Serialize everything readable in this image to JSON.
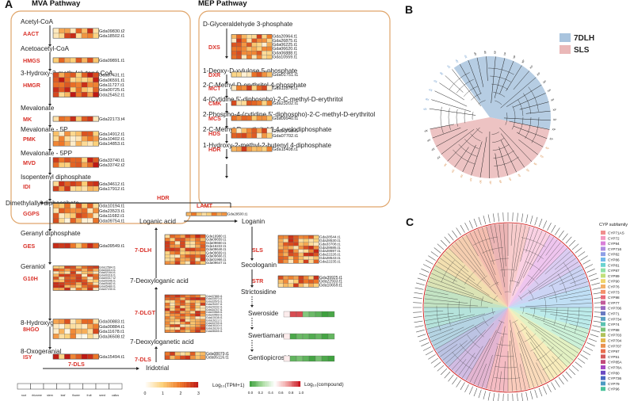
{
  "panels": {
    "a": "A",
    "b": "B",
    "c": "C"
  },
  "headers": {
    "mva": "MVA  Pathway",
    "mep": "MEP  Pathway"
  },
  "mva": [
    {
      "name": "Acetyl-CoA"
    },
    {
      "enzyme": "AACT",
      "genes": [
        "Gda09830.t2",
        "Gda18502.t1"
      ]
    },
    {
      "name": "Acetoacetyl-CoA"
    },
    {
      "enzyme": "HMGS",
      "genes": [
        "Gda09891.t1"
      ]
    },
    {
      "name": "3-Hydroxy-3-methylglutaryl-CoA"
    },
    {
      "enzyme": "HMGR",
      "genes": [
        "Gda07431.t1",
        "Gda06591.t1",
        "Gda11727.t1",
        "Gda00725.t1",
        "Gda25452.t1"
      ]
    },
    {
      "name": "Mevalonate"
    },
    {
      "enzyme": "MK",
      "genes": [
        "Gda22173.t4"
      ]
    },
    {
      "name": "Mevalonate - 5P"
    },
    {
      "enzyme": "PMK",
      "genes": [
        "Gda14912.t1",
        "Gda10402.t1",
        "Gda14853.t1"
      ]
    },
    {
      "name": "Mevalonate - 5PP"
    },
    {
      "enzyme": "MVD",
      "genes": [
        "Gda33740.t1",
        "Gda33742.t2"
      ]
    },
    {
      "name": "Isopentenyl diphosphate"
    },
    {
      "enzyme": "IDI",
      "genes": [
        "Gda34612.t1",
        "Gda17912.t1"
      ]
    },
    {
      "name": "Dimethylallyl diphosphate"
    },
    {
      "enzyme": "GGPS",
      "genes": [
        "Gda10194.t1",
        "Gda23523.t1",
        "Gda11682.t1",
        "Gda09754.t1"
      ]
    },
    {
      "name": "Geranyl diphosphate"
    },
    {
      "enzyme": "GES",
      "genes": [
        "Gda09549.t1"
      ]
    },
    {
      "name": "Geraniol"
    },
    {
      "enzyme": "G10H",
      "genes": [
        "Gda12584.t1",
        "Gda34414.t1",
        "Gda02164.t1",
        "Gda00316.t1",
        "Gda00317.t2",
        "Gda00346.t1",
        "Gda05482.t1",
        "Gda05480.t1",
        "Gda37230.t1"
      ]
    },
    {
      "name": "8-Hydroxygeraniol"
    },
    {
      "enzyme": "8HGO",
      "genes": [
        "Gda00883.t1",
        "Gda00884.t1",
        "Gda11678.t1",
        "Gda36508.t2"
      ]
    },
    {
      "name": "8-Oxogeranial"
    },
    {
      "enzyme": "ISY",
      "genes": [
        "Gda15494.t1"
      ]
    },
    {
      "name": "Iridodial"
    }
  ],
  "mep": [
    {
      "name": "D-Glyceraldehyde 3-phosphate"
    },
    {
      "enzyme": "DXS",
      "genes": [
        "Gda20964.t1",
        "Gda26875.t1",
        "Gda06225.t1",
        "Gda06620.t1",
        "Gda06888.t1",
        "Gda10559.t1"
      ]
    },
    {
      "name": "1-Deoxy-D-xylulose 5-phosphate"
    },
    {
      "enzyme": "DXR",
      "genes": [
        "Gda01751.t1"
      ]
    },
    {
      "name": "2-C-Methyl-D-erythritol 4-phosphate"
    },
    {
      "enzyme": "MCT",
      "genes": [
        "Gda11875.t1"
      ]
    },
    {
      "name": "4-(Cytidine 5'-diphospho)-2-C-methyl-D-erythritol"
    },
    {
      "enzyme": "CMK",
      "genes": [
        "Gda23202.t1"
      ]
    },
    {
      "name": "2-Phospho-4-(cytidine 5'-diphospho)-2-C-methyl-D-erythritol"
    },
    {
      "enzyme": "MCS",
      "genes": [
        "Gda09940.t1"
      ]
    },
    {
      "name": "2-C-Methyl-D-erythritol 2,4-cyclodiphosphate"
    },
    {
      "enzyme": "HDS",
      "genes": [
        "Gda07708.t1",
        "Gda07702.t1"
      ]
    },
    {
      "name": "1-Hydroxy-2-methyl-2-butenyl 4-diphosphate"
    },
    {
      "enzyme": "HDR",
      "genes": [
        "Gda11408.t1"
      ]
    }
  ],
  "labels": {
    "hdr_link": "HDR",
    "dls": "7-DLS",
    "iridotrial": "Iridotrial",
    "deoxyloganetic": "7-Deoxyloganetic acid",
    "deoxyloganic": "7-Deoxyloganic acid",
    "loganic": "Loganic acid",
    "loganin": "Loganin",
    "secologanin": "Secologanin",
    "strictosidine": "Strictosidine",
    "sweroside": "Sweroside",
    "swertiamarin": "Swertiamarin",
    "gentiopicroside": "Gentiopicroside"
  },
  "downstream_enzymes": [
    {
      "enzyme": "7-DLS",
      "genes": [
        "Gda08079.t1",
        "Gda05116.t1"
      ]
    },
    {
      "enzyme": "7-DLGT",
      "genes": [
        "Gda37585.t1",
        "Gda33570.t1",
        "Gda33576.t1",
        "Gda25437.t1",
        "Gda29232.t1",
        "Gda34747.t1",
        "Gda33568.t1",
        "Gda33569.t1",
        "Gda10108.t1",
        "Gda16111.t1",
        "Gda34749.t1",
        "Gda16110.t1",
        "Gda16109.t1",
        "Gda08045.t1"
      ]
    },
    {
      "enzyme": "7-DLH",
      "genes": [
        "Gda16980.t1",
        "Gda09659.t1",
        "Gda09660.t1",
        "Gda16222.t1",
        "Gda09646.t1",
        "Gda09669.t1",
        "Gda09666.t1",
        "Gda01966.t1",
        "Gda09647.t1"
      ]
    },
    {
      "enzyme": "LAMT",
      "genes": [
        "Gda29500.t1"
      ]
    },
    {
      "enzyme": "SLS",
      "genes": [
        "Gda28544.t1",
        "Gda28530.t1",
        "Gda33708.t1",
        "Gda28685.t1",
        "Gda28697.t1",
        "Gda22226.t1",
        "Gda28543.t1",
        "Gda22235.t1"
      ]
    },
    {
      "enzyme": "STR",
      "genes": [
        "Gda39925.t1",
        "Gda22933.t1",
        "Gda10659.t1"
      ]
    }
  ],
  "legend": {
    "samples": [
      "root",
      "rhizome",
      "stem",
      "leaf",
      "flower",
      "fruit",
      "seed",
      "callus"
    ],
    "expr_ticks": [
      "0",
      "1",
      "2",
      "3"
    ],
    "expr_label": "Log₁₀(TPM+1)",
    "comp_ticks": [
      "0.0",
      "0.2",
      "0.4",
      "0.6",
      "0.8",
      "1.0"
    ],
    "comp_label": "Log₁₀(compound)"
  },
  "tree_b": {
    "legend": [
      "7DLH",
      "SLS"
    ],
    "colors": {
      "dlh": "#a9c4de",
      "sls": "#eab8b8"
    }
  },
  "tree_c": {
    "title": "CYP subfamily",
    "families": [
      "CYP71AS",
      "CYP72",
      "CYP94",
      "CYP716",
      "CYP82",
      "CYP86",
      "CYP81",
      "CYP87",
      "CYP89",
      "CYP90",
      "CYP76",
      "CYP73",
      "CYP98",
      "CYP77",
      "CYP706",
      "CYP71",
      "CYP734",
      "CYP74",
      "CYP88",
      "CYP703",
      "CYP704",
      "CYP707",
      "CYP97",
      "CYP51",
      "CYP85A",
      "CYP78A",
      "CYP80",
      "CYP736",
      "CYP79",
      "CYP96"
    ]
  }
}
